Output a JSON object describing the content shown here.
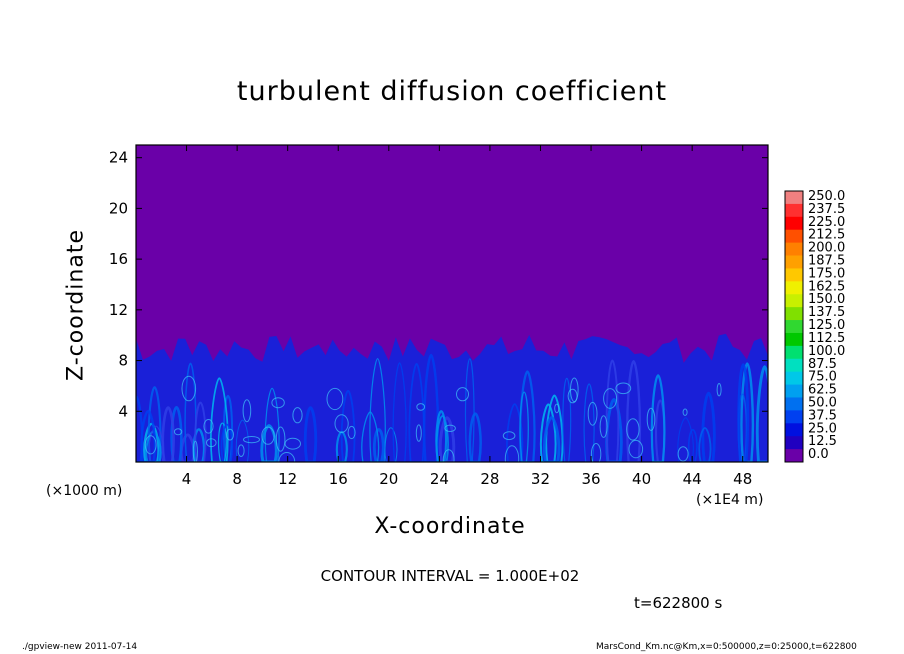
{
  "chart_data": {
    "type": "heatmap",
    "title": "turbulent diffusion coefficient",
    "xlabel": "X-coordinate",
    "ylabel": "Z-coordinate",
    "x_unit_left": "(×1000 m)",
    "x_unit_right": "(×1E4 m)",
    "xlim": [
      0,
      50
    ],
    "ylim": [
      0,
      25
    ],
    "x_ticks": [
      "4",
      "8",
      "12",
      "16",
      "20",
      "24",
      "28",
      "32",
      "36",
      "40",
      "44",
      "48"
    ],
    "y_ticks": [
      "4",
      "8",
      "12",
      "16",
      "20",
      "24"
    ],
    "colorbar": {
      "levels": [
        "250.0",
        "237.5",
        "225.0",
        "212.5",
        "200.0",
        "187.5",
        "175.0",
        "162.5",
        "150.0",
        "137.5",
        "125.0",
        "112.5",
        "100.0",
        "87.5",
        "75.0",
        "62.5",
        "50.0",
        "37.5",
        "25.0",
        "12.5",
        "0.0"
      ],
      "colors": [
        "#f08080",
        "#ff3030",
        "#ff0000",
        "#ff5000",
        "#ff8000",
        "#ffa000",
        "#ffc800",
        "#f0f000",
        "#c8f000",
        "#80e000",
        "#30d830",
        "#00c800",
        "#00e070",
        "#00e0c0",
        "#00c8e8",
        "#00a0f0",
        "#0070f0",
        "#0040f0",
        "#0010e0",
        "#2000c0",
        "#6a00a8"
      ]
    },
    "turbulent_layer_top_approx": 9,
    "background_value": "0.0"
  },
  "annotations": {
    "contour_interval": "CONTOUR INTERVAL = 1.000E+02",
    "time": "t=622800 s",
    "footer_left": "./gpview-new   2011-07-14",
    "footer_right": "MarsCond_Km.nc@Km,x=0:500000,z=0:25000,t=622800"
  }
}
